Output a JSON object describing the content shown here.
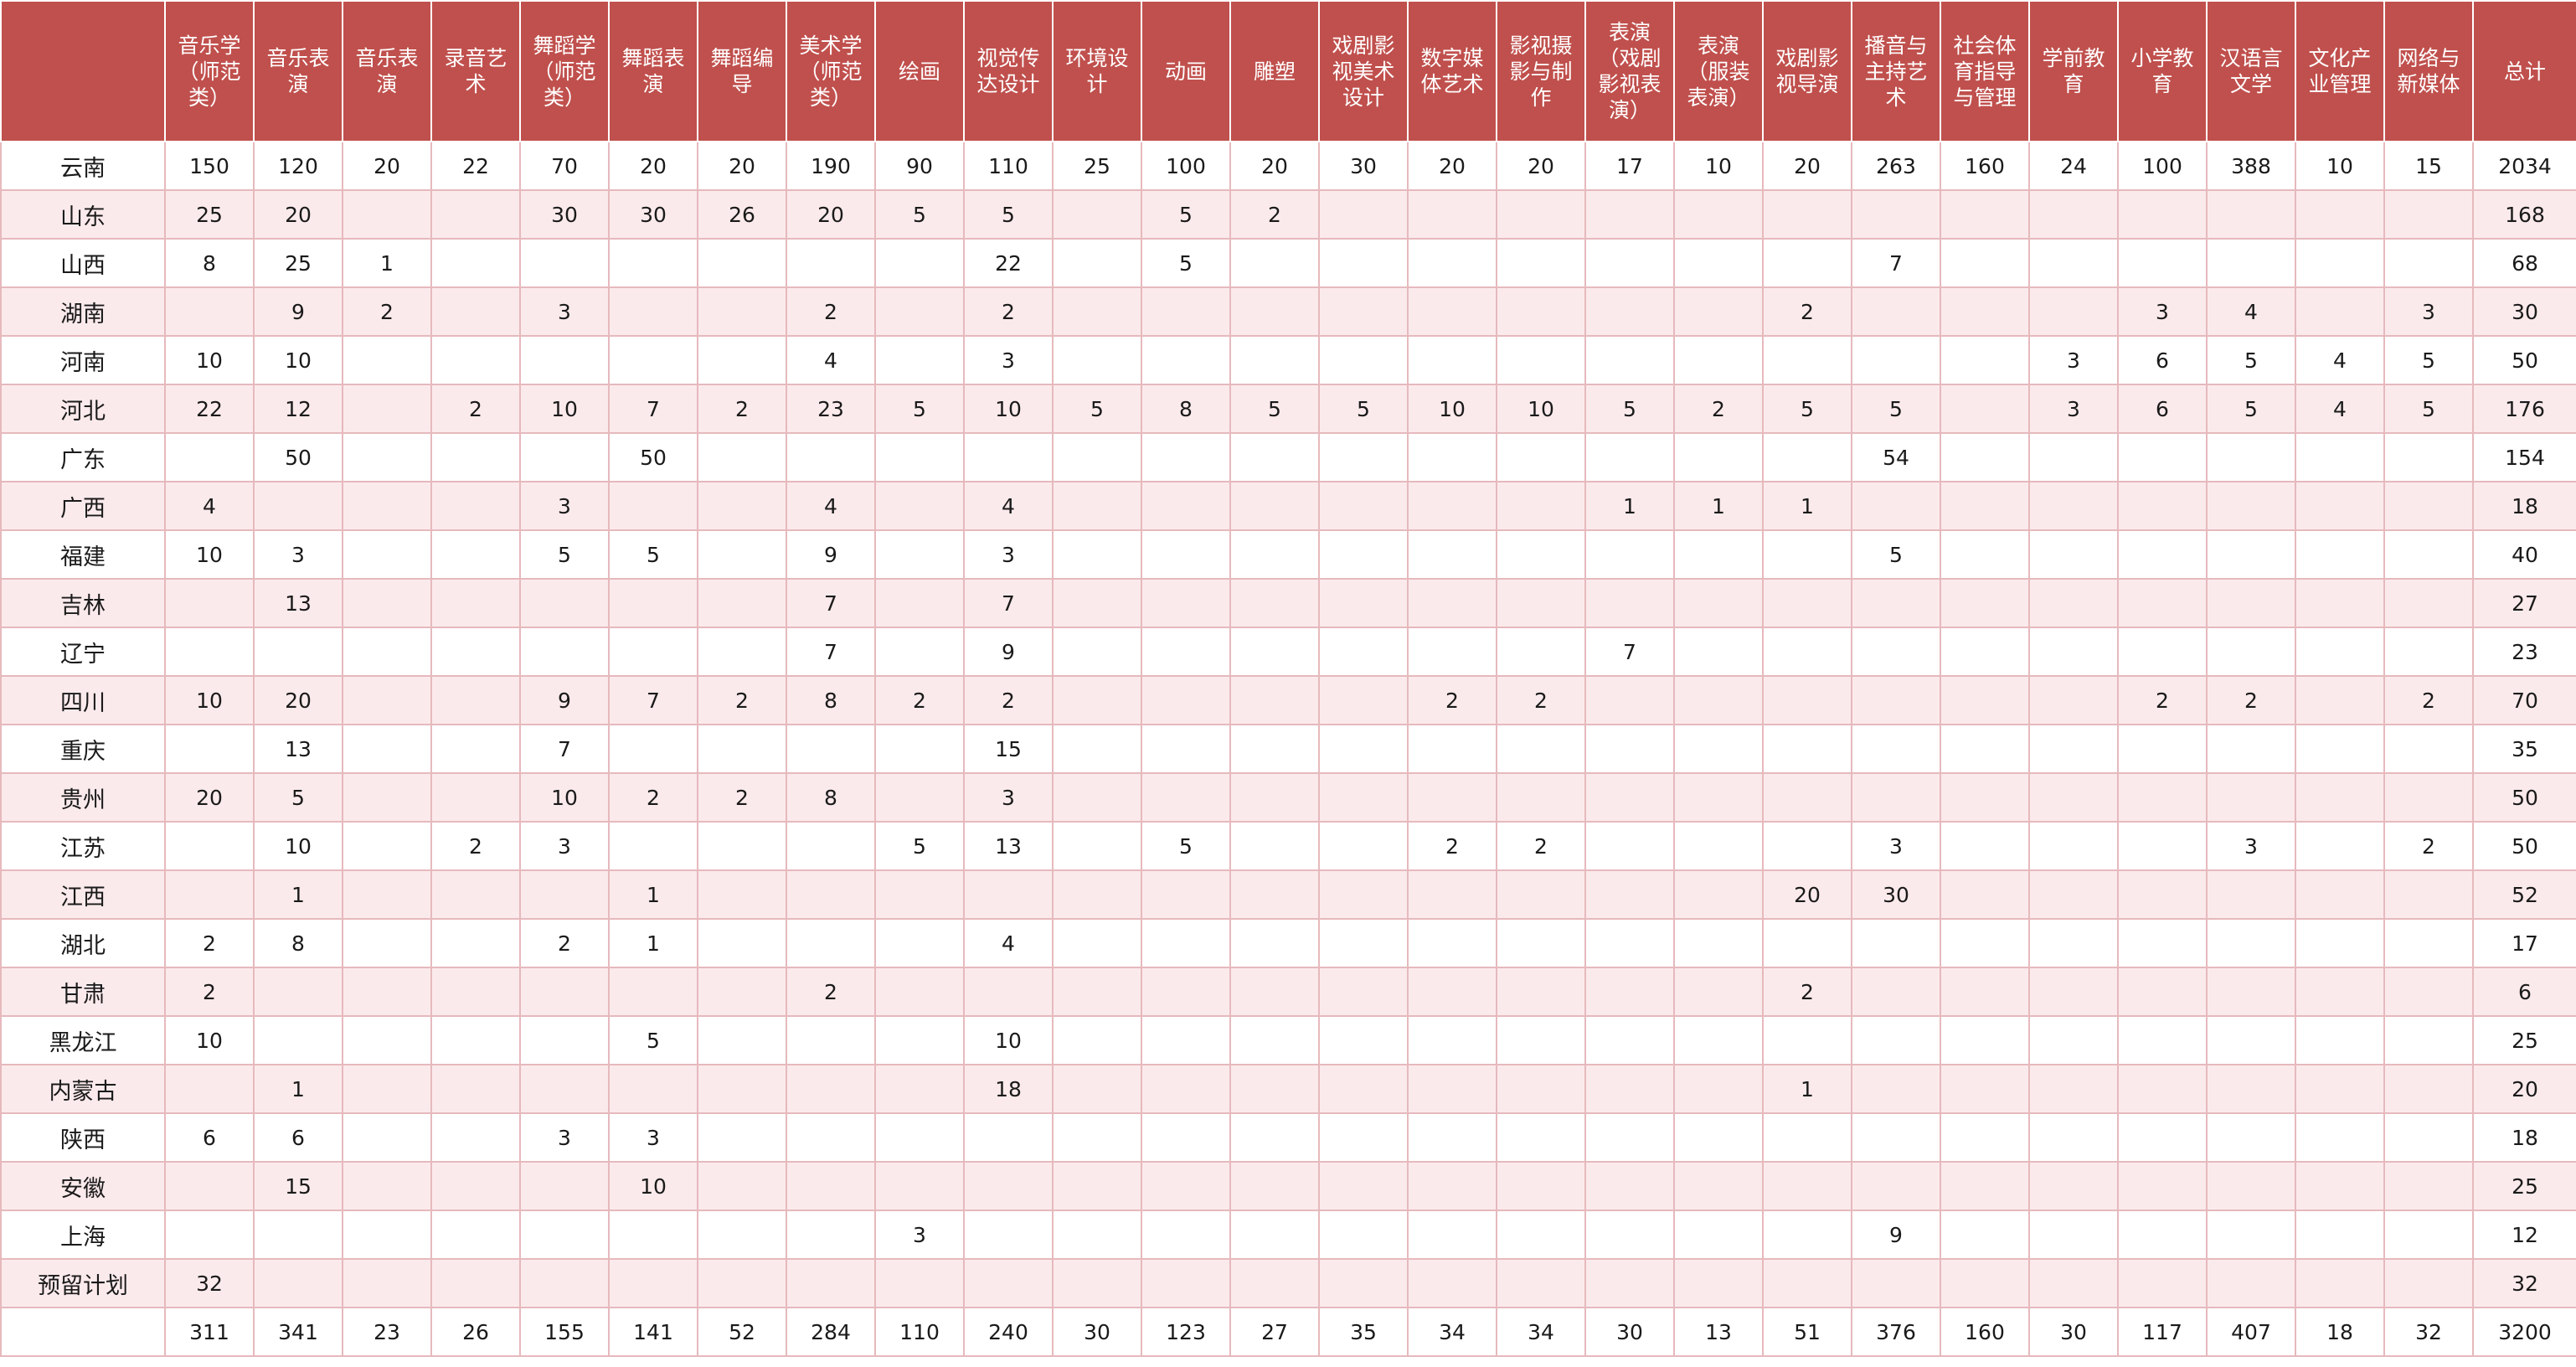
{
  "table": {
    "headers": [
      "",
      "音乐学（师范类）",
      "音乐表演",
      "音乐表演",
      "录音艺术",
      "舞蹈学（师范类）",
      "舞蹈表演",
      "舞蹈编导",
      "美术学（师范类）",
      "绘画",
      "视觉传达设计",
      "环境设计",
      "动画",
      "雕塑",
      "戏剧影视美术设计",
      "数字媒体艺术",
      "影视摄影与制作",
      "表演（戏剧影视表演）",
      "表演（服装表演）",
      "戏剧影视导演",
      "播音与主持艺术",
      "社会体育指导与管理",
      "学前教育",
      "小学教育",
      "汉语言文学",
      "文化产业管理",
      "网络与新媒体",
      "总计"
    ],
    "rows": [
      [
        "云南",
        "150",
        "120",
        "20",
        "22",
        "70",
        "20",
        "20",
        "190",
        "90",
        "110",
        "25",
        "100",
        "20",
        "30",
        "20",
        "20",
        "17",
        "10",
        "20",
        "263",
        "160",
        "24",
        "100",
        "388",
        "10",
        "15",
        "2034"
      ],
      [
        "山东",
        "25",
        "20",
        "",
        "",
        "30",
        "30",
        "26",
        "20",
        "5",
        "5",
        "",
        "5",
        "2",
        "",
        "",
        "",
        "",
        "",
        "",
        "",
        "",
        "",
        "",
        "",
        "",
        "",
        "168"
      ],
      [
        "山西",
        "8",
        "25",
        "1",
        "",
        "",
        "",
        "",
        "",
        "",
        "22",
        "",
        "5",
        "",
        "",
        "",
        "",
        "",
        "",
        "",
        "7",
        "",
        "",
        "",
        "",
        "",
        "",
        "68"
      ],
      [
        "湖南",
        "",
        "9",
        "2",
        "",
        "3",
        "",
        "",
        "2",
        "",
        "2",
        "",
        "",
        "",
        "",
        "",
        "",
        "",
        "",
        "2",
        "",
        "",
        "",
        "3",
        "4",
        "",
        "3",
        "30"
      ],
      [
        "河南",
        "10",
        "10",
        "",
        "",
        "",
        "",
        "",
        "4",
        "",
        "3",
        "",
        "",
        "",
        "",
        "",
        "",
        "",
        "",
        "",
        "",
        "",
        "3",
        "6",
        "5",
        "4",
        "5",
        "50"
      ],
      [
        "河北",
        "22",
        "12",
        "",
        "2",
        "10",
        "7",
        "2",
        "23",
        "5",
        "10",
        "5",
        "8",
        "5",
        "5",
        "10",
        "10",
        "5",
        "2",
        "5",
        "5",
        "",
        "3",
        "6",
        "5",
        "4",
        "5",
        "176"
      ],
      [
        "广东",
        "",
        "50",
        "",
        "",
        "",
        "50",
        "",
        "",
        "",
        "",
        "",
        "",
        "",
        "",
        "",
        "",
        "",
        "",
        "",
        "54",
        "",
        "",
        "",
        "",
        "",
        "",
        "154"
      ],
      [
        "广西",
        "4",
        "",
        "",
        "",
        "3",
        "",
        "",
        "4",
        "",
        "4",
        "",
        "",
        "",
        "",
        "",
        "",
        "1",
        "1",
        "1",
        "",
        "",
        "",
        "",
        "",
        "",
        "",
        "18"
      ],
      [
        "福建",
        "10",
        "3",
        "",
        "",
        "5",
        "5",
        "",
        "9",
        "",
        "3",
        "",
        "",
        "",
        "",
        "",
        "",
        "",
        "",
        "",
        "5",
        "",
        "",
        "",
        "",
        "",
        "",
        "40"
      ],
      [
        "吉林",
        "",
        "13",
        "",
        "",
        "",
        "",
        "",
        "7",
        "",
        "7",
        "",
        "",
        "",
        "",
        "",
        "",
        "",
        "",
        "",
        "",
        "",
        "",
        "",
        "",
        "",
        "",
        "27"
      ],
      [
        "辽宁",
        "",
        "",
        "",
        "",
        "",
        "",
        "",
        "7",
        "",
        "9",
        "",
        "",
        "",
        "",
        "",
        "",
        "7",
        "",
        "",
        "",
        "",
        "",
        "",
        "",
        "",
        "",
        "23"
      ],
      [
        "四川",
        "10",
        "20",
        "",
        "",
        "9",
        "7",
        "2",
        "8",
        "2",
        "2",
        "",
        "",
        "",
        "",
        "2",
        "2",
        "",
        "",
        "",
        "",
        "",
        "",
        "2",
        "2",
        "",
        "2",
        "70"
      ],
      [
        "重庆",
        "",
        "13",
        "",
        "",
        "7",
        "",
        "",
        "",
        "",
        "15",
        "",
        "",
        "",
        "",
        "",
        "",
        "",
        "",
        "",
        "",
        "",
        "",
        "",
        "",
        "",
        "",
        "35"
      ],
      [
        "贵州",
        "20",
        "5",
        "",
        "",
        "10",
        "2",
        "2",
        "8",
        "",
        "3",
        "",
        "",
        "",
        "",
        "",
        "",
        "",
        "",
        "",
        "",
        "",
        "",
        "",
        "",
        "",
        "",
        "50"
      ],
      [
        "江苏",
        "",
        "10",
        "",
        "2",
        "3",
        "",
        "",
        "",
        "5",
        "13",
        "",
        "5",
        "",
        "",
        "2",
        "2",
        "",
        "",
        "",
        "3",
        "",
        "",
        "",
        "3",
        "",
        "2",
        "50"
      ],
      [
        "江西",
        "",
        "1",
        "",
        "",
        "",
        "1",
        "",
        "",
        "",
        "",
        "",
        "",
        "",
        "",
        "",
        "",
        "",
        "",
        "20",
        "30",
        "",
        "",
        "",
        "",
        "",
        "",
        "52"
      ],
      [
        "湖北",
        "2",
        "8",
        "",
        "",
        "2",
        "1",
        "",
        "",
        "",
        "4",
        "",
        "",
        "",
        "",
        "",
        "",
        "",
        "",
        "",
        "",
        "",
        "",
        "",
        "",
        "",
        "",
        "17"
      ],
      [
        "甘肃",
        "2",
        "",
        "",
        "",
        "",
        "",
        "",
        "2",
        "",
        "",
        "",
        "",
        "",
        "",
        "",
        "",
        "",
        "",
        "2",
        "",
        "",
        "",
        "",
        "",
        "",
        "",
        "6"
      ],
      [
        "黑龙江",
        "10",
        "",
        "",
        "",
        "",
        "5",
        "",
        "",
        "",
        "10",
        "",
        "",
        "",
        "",
        "",
        "",
        "",
        "",
        "",
        "",
        "",
        "",
        "",
        "",
        "",
        "",
        "25"
      ],
      [
        "内蒙古",
        "",
        "1",
        "",
        "",
        "",
        "",
        "",
        "",
        "",
        "18",
        "",
        "",
        "",
        "",
        "",
        "",
        "",
        "",
        "1",
        "",
        "",
        "",
        "",
        "",
        "",
        "",
        "20"
      ],
      [
        "陕西",
        "6",
        "6",
        "",
        "",
        "3",
        "3",
        "",
        "",
        "",
        "",
        "",
        "",
        "",
        "",
        "",
        "",
        "",
        "",
        "",
        "",
        "",
        "",
        "",
        "",
        "",
        "",
        "18"
      ],
      [
        "安徽",
        "",
        "15",
        "",
        "",
        "",
        "10",
        "",
        "",
        "",
        "",
        "",
        "",
        "",
        "",
        "",
        "",
        "",
        "",
        "",
        "",
        "",
        "",
        "",
        "",
        "",
        "",
        "25"
      ],
      [
        "上海",
        "",
        "",
        "",
        "",
        "",
        "",
        "",
        "",
        "3",
        "",
        "",
        "",
        "",
        "",
        "",
        "",
        "",
        "",
        "",
        "9",
        "",
        "",
        "",
        "",
        "",
        "",
        "12"
      ],
      [
        "预留计划",
        "32",
        "",
        "",
        "",
        "",
        "",
        "",
        "",
        "",
        "",
        "",
        "",
        "",
        "",
        "",
        "",
        "",
        "",
        "",
        "",
        "",
        "",
        "",
        "",
        "",
        "",
        "32"
      ],
      [
        "",
        "311",
        "341",
        "23",
        "26",
        "155",
        "141",
        "52",
        "284",
        "110",
        "240",
        "30",
        "123",
        "27",
        "35",
        "34",
        "34",
        "30",
        "13",
        "51",
        "376",
        "160",
        "30",
        "117",
        "407",
        "18",
        "32",
        "3200"
      ]
    ]
  }
}
